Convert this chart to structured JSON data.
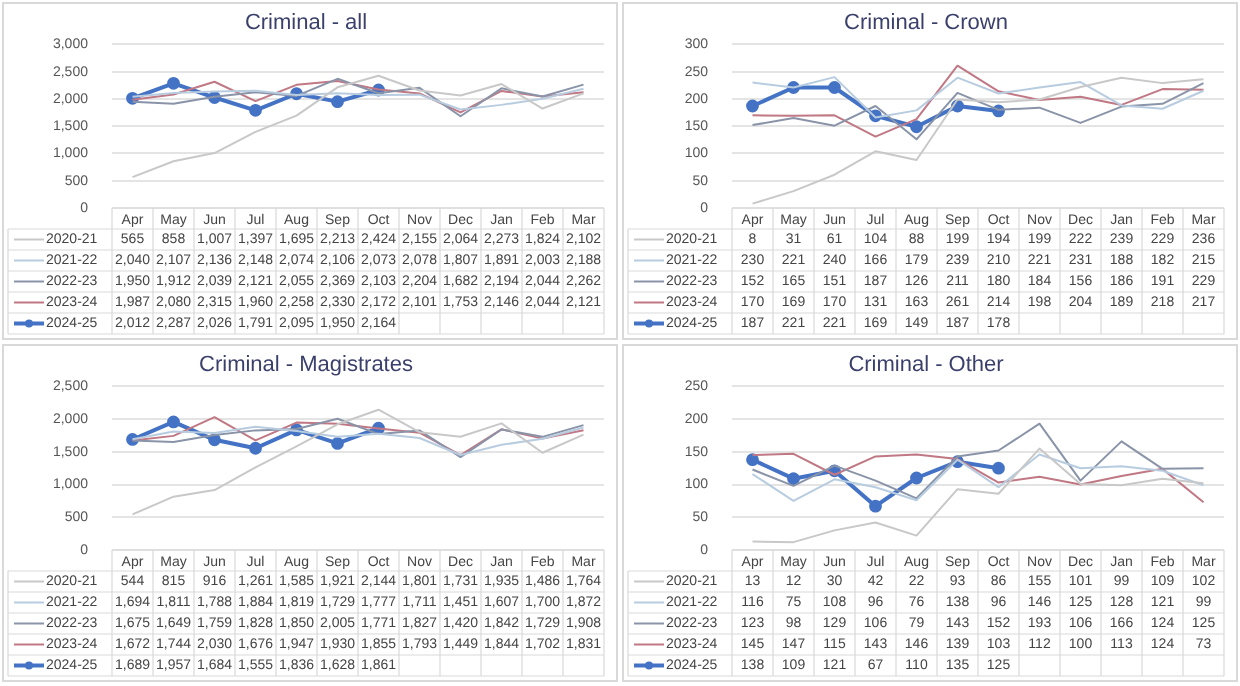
{
  "chart_data": [
    {
      "type": "line",
      "title": "Criminal - all",
      "categories": [
        "Apr",
        "May",
        "Jun",
        "Jul",
        "Aug",
        "Sep",
        "Oct",
        "Nov",
        "Dec",
        "Jan",
        "Feb",
        "Mar"
      ],
      "series": [
        {
          "name": "2020-21",
          "color": "#c8c8c8",
          "values": [
            565,
            858,
            1007,
            1397,
            1695,
            2213,
            2424,
            2155,
            2064,
            2273,
            1824,
            2102
          ],
          "value_labels": [
            "565",
            "858",
            "1,007",
            "1,397",
            "1,695",
            "2,213",
            "2,424",
            "2,155",
            "2,064",
            "2,273",
            "1,824",
            "2,102"
          ]
        },
        {
          "name": "2021-22",
          "color": "#b8cce0",
          "values": [
            2040,
            2107,
            2136,
            2148,
            2074,
            2106,
            2073,
            2078,
            1807,
            1891,
            2003,
            2188
          ],
          "value_labels": [
            "2,040",
            "2,107",
            "2,136",
            "2,148",
            "2,074",
            "2,106",
            "2,073",
            "2,078",
            "1,807",
            "1,891",
            "2,003",
            "2,188"
          ]
        },
        {
          "name": "2022-23",
          "color": "#8a94a8",
          "values": [
            1950,
            1912,
            2039,
            2121,
            2055,
            2369,
            2103,
            2204,
            1682,
            2194,
            2044,
            2262
          ],
          "value_labels": [
            "1,950",
            "1,912",
            "2,039",
            "2,121",
            "2,055",
            "2,369",
            "2,103",
            "2,204",
            "1,682",
            "2,194",
            "2,044",
            "2,262"
          ]
        },
        {
          "name": "2023-24",
          "color": "#c07884",
          "values": [
            1987,
            2080,
            2315,
            1960,
            2258,
            2330,
            2172,
            2101,
            1753,
            2146,
            2044,
            2121
          ],
          "value_labels": [
            "1,987",
            "2,080",
            "2,315",
            "1,960",
            "2,258",
            "2,330",
            "2,172",
            "2,101",
            "1,753",
            "2,146",
            "2,044",
            "2,121"
          ]
        },
        {
          "name": "2024-25",
          "color": "#4472c4",
          "marker": "circle",
          "values": [
            2012,
            2287,
            2026,
            1791,
            2095,
            1950,
            2164,
            null,
            null,
            null,
            null,
            null
          ],
          "value_labels": [
            "2,012",
            "2,287",
            "2,026",
            "1,791",
            "2,095",
            "1,950",
            "2,164",
            null,
            null,
            null,
            null,
            null
          ]
        }
      ],
      "ylim": [
        0,
        3000
      ],
      "yticks": [
        0,
        500,
        {
          "value": 1000,
          "label": "1,000"
        },
        {
          "value": 1500,
          "label": "1,500"
        },
        {
          "value": 2000,
          "label": "2,000"
        },
        {
          "value": 2500,
          "label": "2,500"
        },
        {
          "value": 3000,
          "label": "3,000"
        }
      ],
      "grid": "y",
      "legend": "bottom"
    },
    {
      "type": "line",
      "title": "Criminal - Crown",
      "categories": [
        "Apr",
        "May",
        "Jun",
        "Jul",
        "Aug",
        "Sep",
        "Oct",
        "Nov",
        "Dec",
        "Jan",
        "Feb",
        "Mar"
      ],
      "series": [
        {
          "name": "2020-21",
          "color": "#c8c8c8",
          "values": [
            8,
            31,
            61,
            104,
            88,
            199,
            194,
            199,
            222,
            239,
            229,
            236
          ]
        },
        {
          "name": "2021-22",
          "color": "#b8cce0",
          "values": [
            230,
            221,
            240,
            166,
            179,
            239,
            210,
            221,
            231,
            188,
            182,
            215
          ]
        },
        {
          "name": "2022-23",
          "color": "#8a94a8",
          "values": [
            152,
            165,
            151,
            187,
            126,
            211,
            180,
            184,
            156,
            186,
            191,
            229
          ]
        },
        {
          "name": "2023-24",
          "color": "#c07884",
          "values": [
            170,
            169,
            170,
            131,
            163,
            261,
            214,
            198,
            204,
            189,
            218,
            217
          ]
        },
        {
          "name": "2024-25",
          "color": "#4472c4",
          "marker": "circle",
          "values": [
            187,
            221,
            221,
            169,
            149,
            187,
            178,
            null,
            null,
            null,
            null,
            null
          ]
        }
      ],
      "ylim": [
        0,
        300
      ],
      "yticks": [
        0,
        50,
        100,
        150,
        200,
        250,
        300
      ],
      "grid": "y",
      "legend": "bottom",
      "data_labels": true
    },
    {
      "type": "line",
      "title": "Criminal - Magistrates",
      "categories": [
        "Apr",
        "May",
        "Jun",
        "Jul",
        "Aug",
        "Sep",
        "Oct",
        "Nov",
        "Dec",
        "Jan",
        "Feb",
        "Mar"
      ],
      "series": [
        {
          "name": "2020-21",
          "color": "#c8c8c8",
          "values": [
            544,
            815,
            916,
            1261,
            1585,
            1921,
            2144,
            1801,
            1731,
            1935,
            1486,
            1764
          ],
          "value_labels": [
            "544",
            "815",
            "916",
            "1,261",
            "1,585",
            "1,921",
            "2,144",
            "1,801",
            "1,731",
            "1,935",
            "1,486",
            "1,764"
          ]
        },
        {
          "name": "2021-22",
          "color": "#b8cce0",
          "values": [
            1694,
            1811,
            1788,
            1884,
            1819,
            1729,
            1777,
            1711,
            1451,
            1607,
            1700,
            1872
          ],
          "value_labels": [
            "1,694",
            "1,811",
            "1,788",
            "1,884",
            "1,819",
            "1,729",
            "1,777",
            "1,711",
            "1,451",
            "1,607",
            "1,700",
            "1,872"
          ]
        },
        {
          "name": "2022-23",
          "color": "#8a94a8",
          "values": [
            1675,
            1649,
            1759,
            1828,
            1850,
            2005,
            1771,
            1827,
            1420,
            1842,
            1729,
            1908
          ],
          "value_labels": [
            "1,675",
            "1,649",
            "1,759",
            "1,828",
            "1,850",
            "2,005",
            "1,771",
            "1,827",
            "1,420",
            "1,842",
            "1,729",
            "1,908"
          ]
        },
        {
          "name": "2023-24",
          "color": "#c07884",
          "values": [
            1672,
            1744,
            2030,
            1676,
            1947,
            1930,
            1855,
            1793,
            1449,
            1844,
            1702,
            1831
          ],
          "value_labels": [
            "1,672",
            "1,744",
            "2,030",
            "1,676",
            "1,947",
            "1,930",
            "1,855",
            "1,793",
            "1,449",
            "1,844",
            "1,702",
            "1,831"
          ]
        },
        {
          "name": "2024-25",
          "color": "#4472c4",
          "marker": "circle",
          "values": [
            1689,
            1957,
            1684,
            1555,
            1836,
            1628,
            1861,
            null,
            null,
            null,
            null,
            null
          ],
          "value_labels": [
            "1,689",
            "1,957",
            "1,684",
            "1,555",
            "1,836",
            "1,628",
            "1,861",
            null,
            null,
            null,
            null,
            null
          ]
        }
      ],
      "ylim": [
        0,
        2500
      ],
      "yticks": [
        0,
        500,
        {
          "value": 1000,
          "label": "1,000"
        },
        {
          "value": 1500,
          "label": "1,500"
        },
        {
          "value": 2000,
          "label": "2,000"
        },
        {
          "value": 2500,
          "label": "2,500"
        }
      ],
      "grid": "y",
      "legend": "bottom"
    },
    {
      "type": "line",
      "title": "Criminal - Other",
      "categories": [
        "Apr",
        "May",
        "Jun",
        "Jul",
        "Aug",
        "Sep",
        "Oct",
        "Nov",
        "Dec",
        "Jan",
        "Feb",
        "Mar"
      ],
      "series": [
        {
          "name": "2020-21",
          "color": "#c8c8c8",
          "values": [
            13,
            12,
            30,
            42,
            22,
            93,
            86,
            155,
            101,
            99,
            109,
            102
          ]
        },
        {
          "name": "2021-22",
          "color": "#b8cce0",
          "values": [
            116,
            75,
            108,
            96,
            76,
            138,
            96,
            146,
            125,
            128,
            121,
            99
          ]
        },
        {
          "name": "2022-23",
          "color": "#8a94a8",
          "values": [
            123,
            98,
            129,
            106,
            79,
            143,
            152,
            193,
            106,
            166,
            124,
            125
          ]
        },
        {
          "name": "2023-24",
          "color": "#c07884",
          "values": [
            145,
            147,
            115,
            143,
            146,
            139,
            103,
            112,
            100,
            113,
            124,
            73
          ]
        },
        {
          "name": "2024-25",
          "color": "#4472c4",
          "marker": "circle",
          "values": [
            138,
            109,
            121,
            67,
            110,
            135,
            125,
            null,
            null,
            null,
            null,
            null
          ]
        }
      ],
      "ylim": [
        0,
        250
      ],
      "yticks": [
        0,
        50,
        100,
        150,
        200,
        250
      ],
      "grid": "y",
      "legend": "bottom",
      "data_labels": true
    }
  ]
}
